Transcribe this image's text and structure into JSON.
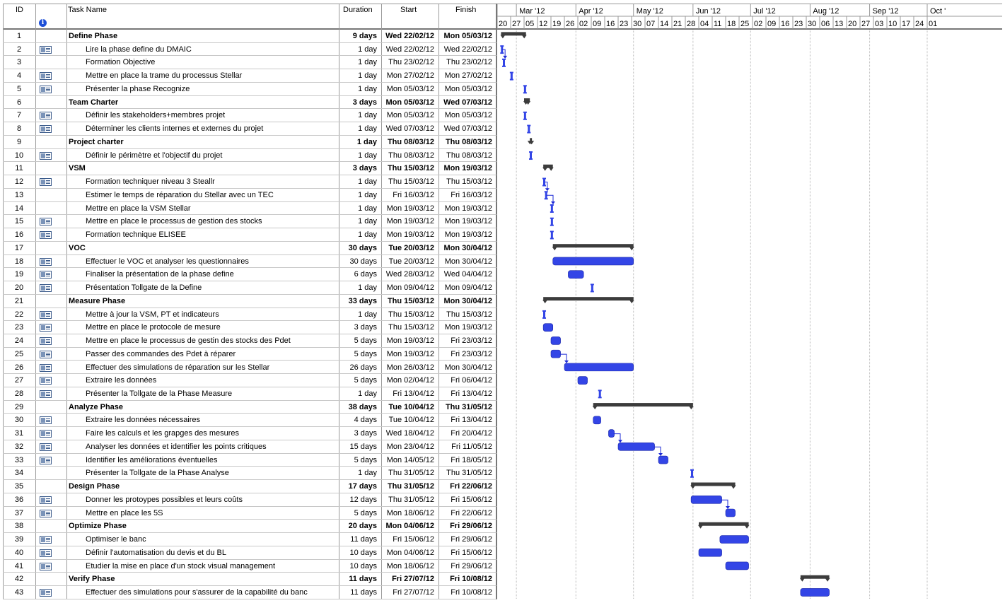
{
  "columns": {
    "id": "ID",
    "task_name": "Task Name",
    "duration": "Duration",
    "start": "Start",
    "finish": "Finish"
  },
  "timescale": {
    "months": [
      "Mar '12",
      "Apr '12",
      "May '12",
      "Jun '12",
      "Jul '12",
      "Aug '12",
      "Sep '12",
      "Oct '"
    ],
    "weeks": [
      "20",
      "27",
      "05",
      "12",
      "19",
      "26",
      "02",
      "09",
      "16",
      "23",
      "30",
      "07",
      "14",
      "21",
      "28",
      "04",
      "11",
      "18",
      "25",
      "02",
      "09",
      "16",
      "23",
      "30",
      "06",
      "13",
      "20",
      "27",
      "03",
      "10",
      "17",
      "24",
      "01"
    ]
  },
  "colors": {
    "task_bar": "#3345e6",
    "summary_bar": "#3c3c3c",
    "grid": "#c8c8c8",
    "link_arrow": "#1e2bd6"
  },
  "tasks": [
    {
      "id": "1",
      "name": "Define Phase",
      "duration": "9 days",
      "start": "Wed 22/02/12",
      "finish": "Mon 05/03/12",
      "summary": true,
      "note": false,
      "bar_start": "2012-02-22",
      "bar_end": "2012-03-05"
    },
    {
      "id": "2",
      "name": "Lire la phase define du DMAIC",
      "duration": "1 day",
      "start": "Wed 22/02/12",
      "finish": "Wed 22/02/12",
      "summary": false,
      "note": true,
      "bar_start": "2012-02-22",
      "bar_end": "2012-02-22"
    },
    {
      "id": "3",
      "name": "Formation Objective",
      "duration": "1 day",
      "start": "Thu 23/02/12",
      "finish": "Thu 23/02/12",
      "summary": false,
      "note": false,
      "bar_start": "2012-02-23",
      "bar_end": "2012-02-23"
    },
    {
      "id": "4",
      "name": "Mettre en place la trame du processus Stellar",
      "duration": "1 day",
      "start": "Mon 27/02/12",
      "finish": "Mon 27/02/12",
      "summary": false,
      "note": true,
      "bar_start": "2012-02-27",
      "bar_end": "2012-02-27"
    },
    {
      "id": "5",
      "name": "Présenter la phase Recognize",
      "duration": "1 day",
      "start": "Mon 05/03/12",
      "finish": "Mon 05/03/12",
      "summary": false,
      "note": true,
      "bar_start": "2012-03-05",
      "bar_end": "2012-03-05"
    },
    {
      "id": "6",
      "name": "Team Charter",
      "duration": "3 days",
      "start": "Mon 05/03/12",
      "finish": "Wed 07/03/12",
      "summary": true,
      "note": false,
      "bar_start": "2012-03-05",
      "bar_end": "2012-03-07"
    },
    {
      "id": "7",
      "name": "Définir les stakeholders+membres projet",
      "duration": "1 day",
      "start": "Mon 05/03/12",
      "finish": "Mon 05/03/12",
      "summary": false,
      "note": true,
      "bar_start": "2012-03-05",
      "bar_end": "2012-03-05"
    },
    {
      "id": "8",
      "name": "Déterminer les clients internes et externes du projet",
      "duration": "1 day",
      "start": "Wed 07/03/12",
      "finish": "Wed 07/03/12",
      "summary": false,
      "note": true,
      "bar_start": "2012-03-07",
      "bar_end": "2012-03-07"
    },
    {
      "id": "9",
      "name": "Project charter",
      "duration": "1 day",
      "start": "Thu 08/03/12",
      "finish": "Thu 08/03/12",
      "summary": true,
      "note": false,
      "bar_start": "2012-03-08",
      "bar_end": "2012-03-08"
    },
    {
      "id": "10",
      "name": "Définir le périmètre et l'objectif du projet",
      "duration": "1 day",
      "start": "Thu 08/03/12",
      "finish": "Thu 08/03/12",
      "summary": false,
      "note": true,
      "bar_start": "2012-03-08",
      "bar_end": "2012-03-08"
    },
    {
      "id": "11",
      "name": "VSM",
      "duration": "3 days",
      "start": "Thu 15/03/12",
      "finish": "Mon 19/03/12",
      "summary": true,
      "note": false,
      "bar_start": "2012-03-15",
      "bar_end": "2012-03-19"
    },
    {
      "id": "12",
      "name": "Formation techniquer niveau 3 Steallr",
      "duration": "1 day",
      "start": "Thu 15/03/12",
      "finish": "Thu 15/03/12",
      "summary": false,
      "note": true,
      "bar_start": "2012-03-15",
      "bar_end": "2012-03-15"
    },
    {
      "id": "13",
      "name": "Estimer le temps de réparation du Stellar avec un TEC",
      "duration": "1 day",
      "start": "Fri 16/03/12",
      "finish": "Fri 16/03/12",
      "summary": false,
      "note": false,
      "bar_start": "2012-03-16",
      "bar_end": "2012-03-16"
    },
    {
      "id": "14",
      "name": "Mettre en place la VSM Stellar",
      "duration": "1 day",
      "start": "Mon 19/03/12",
      "finish": "Mon 19/03/12",
      "summary": false,
      "note": false,
      "bar_start": "2012-03-19",
      "bar_end": "2012-03-19"
    },
    {
      "id": "15",
      "name": "Mettre en place le processus de gestion des stocks",
      "duration": "1 day",
      "start": "Mon 19/03/12",
      "finish": "Mon 19/03/12",
      "summary": false,
      "note": true,
      "bar_start": "2012-03-19",
      "bar_end": "2012-03-19"
    },
    {
      "id": "16",
      "name": "Formation technique ELISEE",
      "duration": "1 day",
      "start": "Mon 19/03/12",
      "finish": "Mon 19/03/12",
      "summary": false,
      "note": true,
      "bar_start": "2012-03-19",
      "bar_end": "2012-03-19"
    },
    {
      "id": "17",
      "name": "VOC",
      "duration": "30 days",
      "start": "Tue 20/03/12",
      "finish": "Mon 30/04/12",
      "summary": true,
      "note": false,
      "bar_start": "2012-03-20",
      "bar_end": "2012-04-30"
    },
    {
      "id": "18",
      "name": "Effectuer le VOC et analyser les questionnaires",
      "duration": "30 days",
      "start": "Tue 20/03/12",
      "finish": "Mon 30/04/12",
      "summary": false,
      "note": true,
      "bar_start": "2012-03-20",
      "bar_end": "2012-04-30"
    },
    {
      "id": "19",
      "name": "Finaliser la présentation de la phase define",
      "duration": "6 days",
      "start": "Wed 28/03/12",
      "finish": "Wed 04/04/12",
      "summary": false,
      "note": true,
      "bar_start": "2012-03-28",
      "bar_end": "2012-04-04"
    },
    {
      "id": "20",
      "name": "Présentation Tollgate de la Define",
      "duration": "1 day",
      "start": "Mon 09/04/12",
      "finish": "Mon 09/04/12",
      "summary": false,
      "note": true,
      "bar_start": "2012-04-09",
      "bar_end": "2012-04-09"
    },
    {
      "id": "21",
      "name": "Measure Phase",
      "duration": "33 days",
      "start": "Thu 15/03/12",
      "finish": "Mon 30/04/12",
      "summary": true,
      "note": false,
      "bar_start": "2012-03-15",
      "bar_end": "2012-04-30"
    },
    {
      "id": "22",
      "name": "Mettre à jour la VSM, PT et indicateurs",
      "duration": "1 day",
      "start": "Thu 15/03/12",
      "finish": "Thu 15/03/12",
      "summary": false,
      "note": true,
      "bar_start": "2012-03-15",
      "bar_end": "2012-03-15"
    },
    {
      "id": "23",
      "name": "Mettre en place le protocole de mesure",
      "duration": "3 days",
      "start": "Thu 15/03/12",
      "finish": "Mon 19/03/12",
      "summary": false,
      "note": true,
      "bar_start": "2012-03-15",
      "bar_end": "2012-03-19"
    },
    {
      "id": "24",
      "name": "Mettre en place le processus de gestin des stocks des Pdet",
      "duration": "5 days",
      "start": "Mon 19/03/12",
      "finish": "Fri 23/03/12",
      "summary": false,
      "note": true,
      "bar_start": "2012-03-19",
      "bar_end": "2012-03-23"
    },
    {
      "id": "25",
      "name": "Passer des commandes des Pdet à réparer",
      "duration": "5 days",
      "start": "Mon 19/03/12",
      "finish": "Fri 23/03/12",
      "summary": false,
      "note": true,
      "bar_start": "2012-03-19",
      "bar_end": "2012-03-23"
    },
    {
      "id": "26",
      "name": "Effectuer des simulations de réparation sur les Stellar",
      "duration": "26 days",
      "start": "Mon 26/03/12",
      "finish": "Mon 30/04/12",
      "summary": false,
      "note": true,
      "bar_start": "2012-03-26",
      "bar_end": "2012-04-30"
    },
    {
      "id": "27",
      "name": "Extraire les données",
      "duration": "5 days",
      "start": "Mon 02/04/12",
      "finish": "Fri 06/04/12",
      "summary": false,
      "note": true,
      "bar_start": "2012-04-02",
      "bar_end": "2012-04-06"
    },
    {
      "id": "28",
      "name": "Présenter la Tollgate de la Phase Measure",
      "duration": "1 day",
      "start": "Fri 13/04/12",
      "finish": "Fri 13/04/12",
      "summary": false,
      "note": true,
      "bar_start": "2012-04-13",
      "bar_end": "2012-04-13"
    },
    {
      "id": "29",
      "name": "Analyze Phase",
      "duration": "38 days",
      "start": "Tue 10/04/12",
      "finish": "Thu 31/05/12",
      "summary": true,
      "note": false,
      "bar_start": "2012-04-10",
      "bar_end": "2012-05-31"
    },
    {
      "id": "30",
      "name": "Extraire les données nécessaires",
      "duration": "4 days",
      "start": "Tue 10/04/12",
      "finish": "Fri 13/04/12",
      "summary": false,
      "note": true,
      "bar_start": "2012-04-10",
      "bar_end": "2012-04-13"
    },
    {
      "id": "31",
      "name": "Faire les calculs et les grapges des mesures",
      "duration": "3 days",
      "start": "Wed 18/04/12",
      "finish": "Fri 20/04/12",
      "summary": false,
      "note": true,
      "bar_start": "2012-04-18",
      "bar_end": "2012-04-20"
    },
    {
      "id": "32",
      "name": "Analyser les données et identifier les points critiques",
      "duration": "15 days",
      "start": "Mon 23/04/12",
      "finish": "Fri 11/05/12",
      "summary": false,
      "note": true,
      "bar_start": "2012-04-23",
      "bar_end": "2012-05-11"
    },
    {
      "id": "33",
      "name": "Identifier les améliorations éventuelles",
      "duration": "5 days",
      "start": "Mon 14/05/12",
      "finish": "Fri 18/05/12",
      "summary": false,
      "note": true,
      "bar_start": "2012-05-14",
      "bar_end": "2012-05-18"
    },
    {
      "id": "34",
      "name": "Présenter la Tollgate de la Phase Analyse",
      "duration": "1 day",
      "start": "Thu 31/05/12",
      "finish": "Thu 31/05/12",
      "summary": false,
      "note": false,
      "bar_start": "2012-05-31",
      "bar_end": "2012-05-31"
    },
    {
      "id": "35",
      "name": "Design Phase",
      "duration": "17 days",
      "start": "Thu 31/05/12",
      "finish": "Fri 22/06/12",
      "summary": true,
      "note": false,
      "bar_start": "2012-05-31",
      "bar_end": "2012-06-22"
    },
    {
      "id": "36",
      "name": "Donner les protoypes possibles et leurs coûts",
      "duration": "12 days",
      "start": "Thu 31/05/12",
      "finish": "Fri 15/06/12",
      "summary": false,
      "note": true,
      "bar_start": "2012-05-31",
      "bar_end": "2012-06-15"
    },
    {
      "id": "37",
      "name": "Mettre en place les 5S",
      "duration": "5 days",
      "start": "Mon 18/06/12",
      "finish": "Fri 22/06/12",
      "summary": false,
      "note": true,
      "bar_start": "2012-06-18",
      "bar_end": "2012-06-22"
    },
    {
      "id": "38",
      "name": "Optimize Phase",
      "duration": "20 days",
      "start": "Mon 04/06/12",
      "finish": "Fri 29/06/12",
      "summary": true,
      "note": false,
      "bar_start": "2012-06-04",
      "bar_end": "2012-06-29"
    },
    {
      "id": "39",
      "name": "Optimiser le banc",
      "duration": "11 days",
      "start": "Fri 15/06/12",
      "finish": "Fri 29/06/12",
      "summary": false,
      "note": true,
      "bar_start": "2012-06-15",
      "bar_end": "2012-06-29"
    },
    {
      "id": "40",
      "name": "Définir l'automatisation du devis et du BL",
      "duration": "10 days",
      "start": "Mon 04/06/12",
      "finish": "Fri 15/06/12",
      "summary": false,
      "note": true,
      "bar_start": "2012-06-04",
      "bar_end": "2012-06-15"
    },
    {
      "id": "41",
      "name": "Etudier la mise en place d'un stock visual management",
      "duration": "10 days",
      "start": "Mon 18/06/12",
      "finish": "Fri 29/06/12",
      "summary": false,
      "note": true,
      "bar_start": "2012-06-18",
      "bar_end": "2012-06-29"
    },
    {
      "id": "42",
      "name": "Verify Phase",
      "duration": "11 days",
      "start": "Fri 27/07/12",
      "finish": "Fri 10/08/12",
      "summary": true,
      "note": false,
      "bar_start": "2012-07-27",
      "bar_end": "2012-08-10"
    },
    {
      "id": "43",
      "name": "Effectuer des simulations pour s'assurer de la capabilité du banc",
      "duration": "11 days",
      "start": "Fri 27/07/12",
      "finish": "Fri 10/08/12",
      "summary": false,
      "note": true,
      "bar_start": "2012-07-27",
      "bar_end": "2012-08-10"
    }
  ],
  "links": [
    [
      "2",
      "3"
    ],
    [
      "12",
      "13"
    ],
    [
      "13",
      "14"
    ],
    [
      "25",
      "26"
    ],
    [
      "31",
      "32"
    ],
    [
      "32",
      "33"
    ],
    [
      "36",
      "37"
    ]
  ]
}
